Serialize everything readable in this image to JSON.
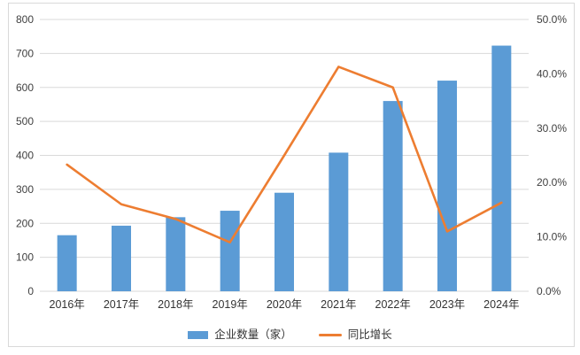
{
  "chart_data": {
    "type": "combo-bar-line",
    "title": "",
    "categories": [
      "2016年",
      "2017年",
      "2018年",
      "2019年",
      "2020年",
      "2021年",
      "2022年",
      "2023年",
      "2024年"
    ],
    "series": [
      {
        "name": "企业数量（家）",
        "type": "bar",
        "axis": "left",
        "values": [
          165,
          193,
          218,
          237,
          290,
          408,
          560,
          620,
          723
        ]
      },
      {
        "name": "同比增长",
        "type": "line",
        "axis": "right",
        "values": [
          23.3,
          16.0,
          13.3,
          9.0,
          25.0,
          41.3,
          37.5,
          11.0,
          16.3
        ]
      }
    ],
    "left_axis": {
      "min": 0,
      "max": 800,
      "step": 100,
      "tick_labels": [
        "0",
        "100",
        "200",
        "300",
        "400",
        "500",
        "600",
        "700",
        "800"
      ]
    },
    "right_axis": {
      "min": 0,
      "max": 50,
      "step": 10,
      "tick_labels": [
        "0.0%",
        "10.0%",
        "20.0%",
        "30.0%",
        "40.0%",
        "50.0%"
      ]
    },
    "grid": "horizontal-only",
    "legend_position": "bottom"
  },
  "colors": {
    "bar": "#5B9BD5",
    "line": "#ED7D31",
    "grid": "#d9d9d9",
    "axis_text": "#404040",
    "category_text": "#333333",
    "frame_border": "#d9d9d9"
  }
}
